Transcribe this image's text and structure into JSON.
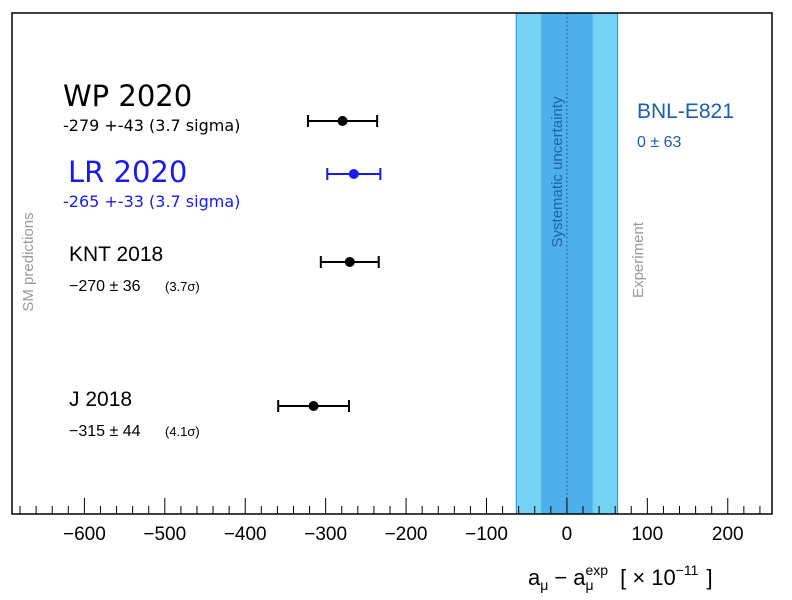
{
  "chart_data": {
    "type": "scatter",
    "xlim": [
      -690,
      255
    ],
    "xticks": [
      -600,
      -500,
      -400,
      -300,
      -200,
      -100,
      0,
      100,
      200
    ],
    "xtick_labels": [
      "−600",
      "−500",
      "−400",
      "−300",
      "−200",
      "−100",
      "0",
      "100",
      "200"
    ],
    "minor_tick_step": 20,
    "xlabel": {
      "a": "a",
      "mu": "μ",
      "minus": "−",
      "exp": "exp",
      "scale_open": "[ × 10",
      "scale_exp": "−11",
      "scale_close": "]"
    },
    "points": [
      {
        "name": "WP 2020",
        "value": -279,
        "err": 43,
        "annotation": "-279 +-43 (3.7 sigma)",
        "color": "#000000"
      },
      {
        "name": "LR 2020",
        "value": -265,
        "err": 33,
        "annotation": "-265 +-33 (3.7 sigma)",
        "color": "#1a1aee"
      },
      {
        "name": "KNT 2018",
        "value": -270,
        "err": 36,
        "annotation_main": "−270 ± 36",
        "annotation_sigma": "(3.7σ)",
        "color": "#000000"
      },
      {
        "name": "J 2018",
        "value": -315,
        "err": 44,
        "annotation_main": "−315 ± 44",
        "annotation_sigma": "(4.1σ)",
        "color": "#000000"
      }
    ],
    "experiment": {
      "name": "BNL-E821",
      "value": 0,
      "err": 63,
      "annotation": "0 ± 63",
      "label_color": "#1a5eb0",
      "total_band": {
        "half_width": 63,
        "color": "#74d3f5"
      },
      "systematic_band": {
        "half_width": 32,
        "color": "#4db0ec"
      }
    },
    "band_text": "Systematic uncertainty",
    "left_vertical_label": "SM predictions",
    "right_vertical_label": "Experiment",
    "grid": false
  }
}
